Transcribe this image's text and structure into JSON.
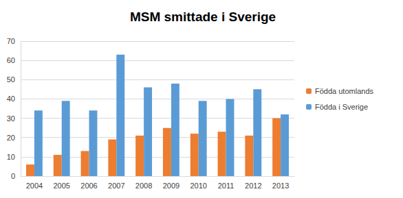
{
  "chart_data": {
    "type": "bar",
    "title": "MSM smittade i Sverige",
    "categories": [
      "2004",
      "2005",
      "2006",
      "2007",
      "2008",
      "2009",
      "2010",
      "2011",
      "2012",
      "2013"
    ],
    "series": [
      {
        "name": "Födda utomlands",
        "color": "#ed7d31",
        "values": [
          6,
          11,
          13,
          19,
          21,
          25,
          22,
          23,
          21,
          30
        ]
      },
      {
        "name": "Födda i Sverige",
        "color": "#5b9bd5",
        "values": [
          34,
          39,
          34,
          63,
          46,
          48,
          39,
          40,
          45,
          32
        ]
      }
    ],
    "ylim": [
      0,
      70
    ],
    "yticks": [
      0,
      10,
      20,
      30,
      40,
      50,
      60,
      70
    ],
    "grid": true,
    "legend": "right"
  }
}
